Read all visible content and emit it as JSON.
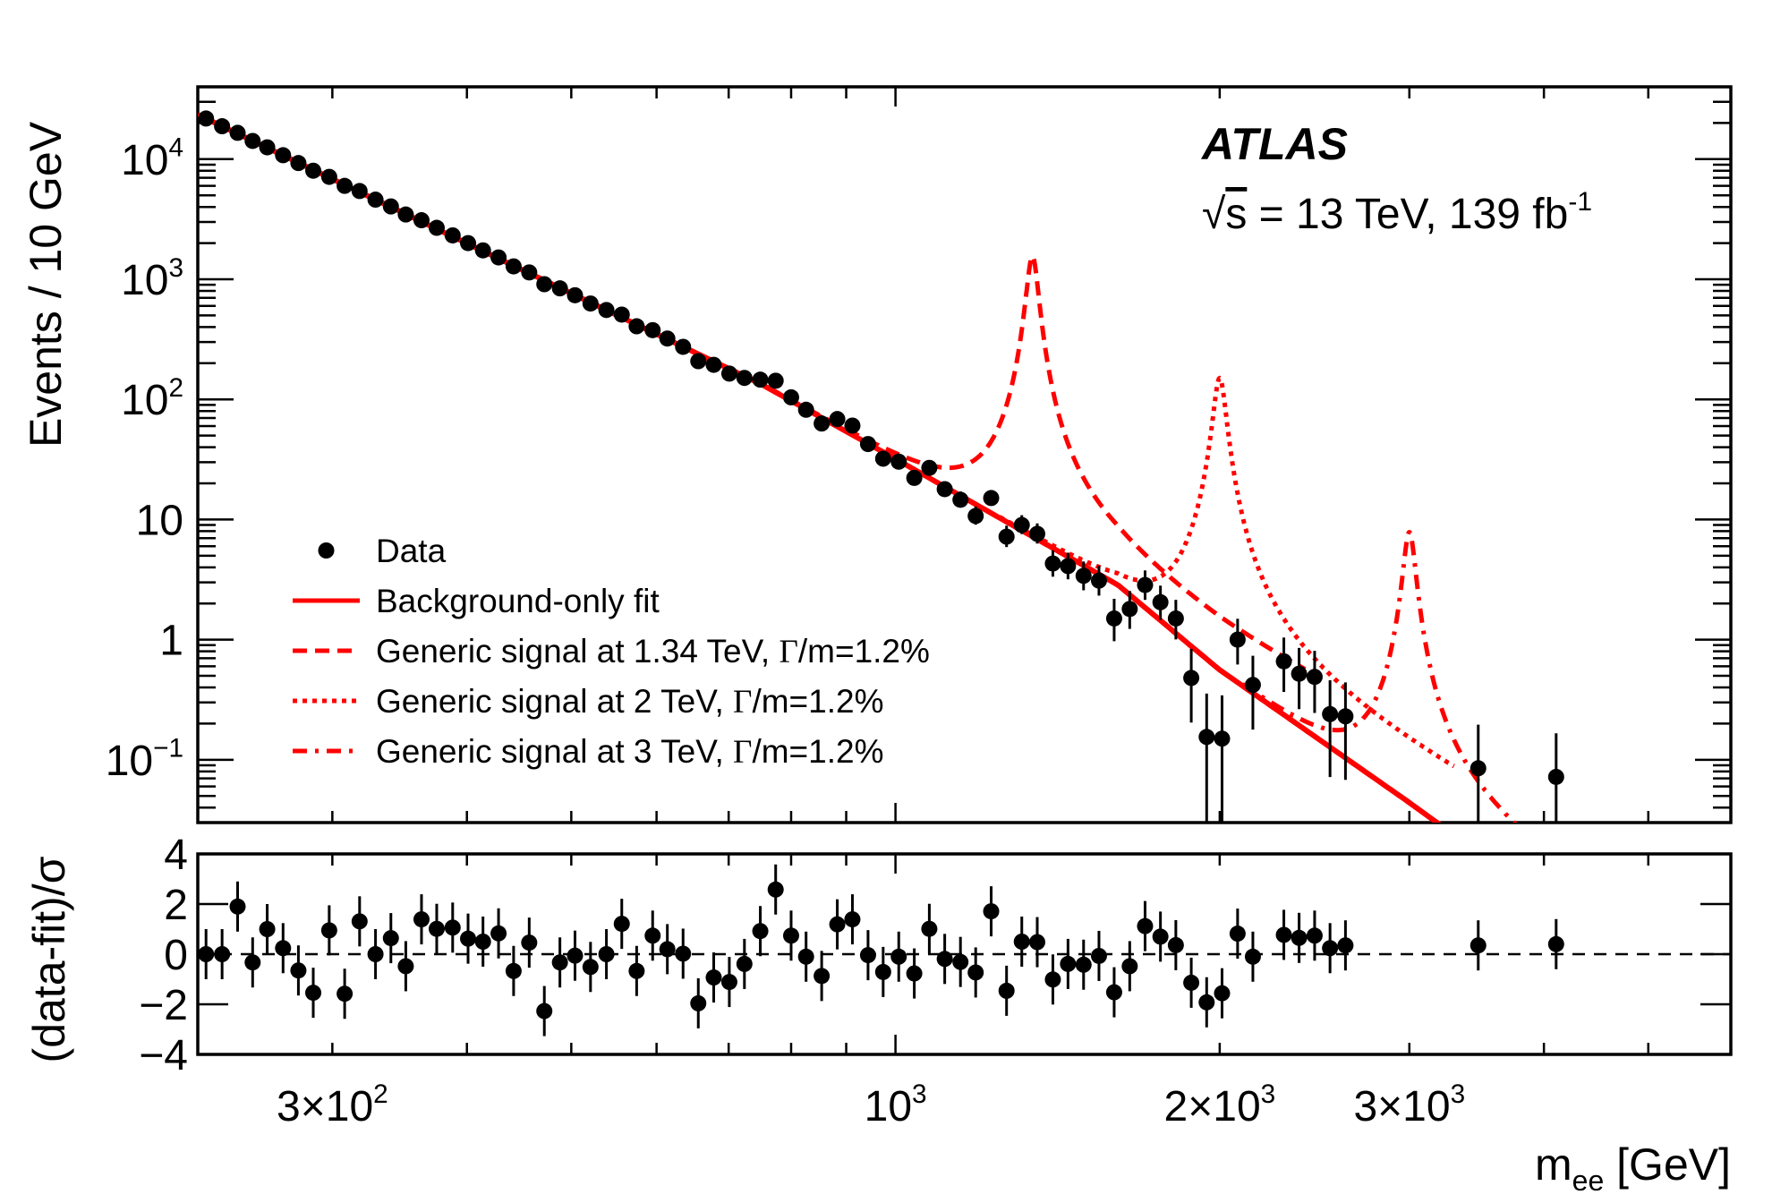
{
  "chart_data": {
    "type": "scatter",
    "title": "",
    "experiment_label": "ATLAS",
    "energy_label": {
      "prefix": "s",
      "text": " = 13 TeV, 139 fb",
      "superscript": "-1"
    },
    "xlabel": {
      "main": "m",
      "sub": "ee",
      "unit": " [GeV]"
    },
    "xscale": "log",
    "xlim": [
      225,
      5965
    ],
    "x_ticks": [
      {
        "value": 300,
        "label": "3×10",
        "exp": "2"
      },
      {
        "value": 1000,
        "label": "10",
        "exp": "3"
      },
      {
        "value": 2000,
        "label": "2×10",
        "exp": "3"
      },
      {
        "value": 3000,
        "label": "3×10",
        "exp": "3"
      }
    ],
    "main_panel": {
      "ylabel": "Events / 10 GeV",
      "yscale": "log",
      "ylim": [
        0.03,
        40000
      ],
      "y_ticks": [
        {
          "value": 10000,
          "label": "10",
          "exp": "4"
        },
        {
          "value": 1000,
          "label": "10",
          "exp": "3"
        },
        {
          "value": 100,
          "label": "10",
          "exp": "2"
        },
        {
          "value": 10,
          "label": "10",
          "exp": ""
        },
        {
          "value": 1,
          "label": "1",
          "exp": ""
        },
        {
          "value": 0.1,
          "label": "10",
          "exp": "−1"
        }
      ]
    },
    "ratio_panel": {
      "ylabel": "(data-fit)/σ",
      "ylim": [
        -4,
        4
      ],
      "y_ticks": [
        {
          "value": 4,
          "label": "4"
        },
        {
          "value": 2,
          "label": "2"
        },
        {
          "value": 0,
          "label": "0"
        },
        {
          "value": -2,
          "label": "−2"
        },
        {
          "value": -4,
          "label": "−4"
        }
      ],
      "reference_line": 0
    },
    "legend": {
      "position": "lower-left",
      "entries": [
        {
          "label": "Data",
          "style": "marker"
        },
        {
          "label": "Background-only fit",
          "style": "solid"
        },
        {
          "label_pre": "Generic signal at 1.34 TeV, ",
          "gamma": "Γ",
          "label_post": "/m=1.2%",
          "style": "dashed"
        },
        {
          "label_pre": "Generic signal at 2 TeV, ",
          "gamma": "Γ",
          "label_post": "/m=1.2%",
          "style": "dotted"
        },
        {
          "label_pre": "Generic signal at 3 TeV, ",
          "gamma": "Γ",
          "label_post": "/m=1.2%",
          "style": "dashdot"
        }
      ]
    },
    "colors": {
      "data": "#000000",
      "fit": "#ff0000",
      "signal": "#ff0000"
    },
    "background_fit": {
      "anchors": [
        [
          225,
          23500
        ],
        [
          749,
          135
        ],
        [
          1000,
          32
        ],
        [
          1609,
          2.85
        ],
        [
          2000,
          0.56
        ],
        [
          3000,
          0.044
        ],
        [
          3182,
          0.03
        ]
      ]
    },
    "signals": [
      {
        "name": "signal-1340",
        "mass": 1340,
        "peak_events": 1550,
        "core_width_gev": 16.8,
        "range": [
          760,
          2400
        ],
        "style": "dashed"
      },
      {
        "name": "signal-2000",
        "mass": 2000,
        "peak_events": 150,
        "core_width_gev": 27,
        "range": [
          1250,
          3300
        ],
        "style": "dotted"
      },
      {
        "name": "signal-3000",
        "mass": 3000,
        "peak_events": 7.8,
        "core_width_gev": 38,
        "range": [
          2100,
          4200
        ],
        "style": "dashdot"
      }
    ],
    "data_points": [
      {
        "m": 229,
        "events": 21790,
        "pull": 0.0
      },
      {
        "m": 237,
        "events": 18800,
        "pull": 0.0
      },
      {
        "m": 245,
        "events": 16550,
        "pull": 1.9
      },
      {
        "m": 253,
        "events": 14170,
        "pull": -0.33
      },
      {
        "m": 261,
        "events": 12540,
        "pull": 1.0
      },
      {
        "m": 270,
        "events": 10780,
        "pull": 0.24
      },
      {
        "m": 279,
        "events": 9280,
        "pull": -0.65
      },
      {
        "m": 288,
        "events": 8010,
        "pull": -1.54
      },
      {
        "m": 298,
        "events": 7120,
        "pull": 0.95
      },
      {
        "m": 308,
        "events": 5990,
        "pull": -1.58
      },
      {
        "m": 318,
        "events": 5430,
        "pull": 1.31
      },
      {
        "m": 329,
        "events": 4600,
        "pull": 0.0
      },
      {
        "m": 340,
        "events": 4040,
        "pull": 0.64
      },
      {
        "m": 351,
        "events": 3460,
        "pull": -0.48
      },
      {
        "m": 363,
        "events": 3100,
        "pull": 1.39
      },
      {
        "m": 375,
        "events": 2680,
        "pull": 1.01
      },
      {
        "m": 388,
        "events": 2320,
        "pull": 1.06
      },
      {
        "m": 401,
        "events": 2000,
        "pull": 0.62
      },
      {
        "m": 414,
        "events": 1740,
        "pull": 0.5
      },
      {
        "m": 428,
        "events": 1520,
        "pull": 0.83
      },
      {
        "m": 442,
        "events": 1280,
        "pull": -0.67
      },
      {
        "m": 457,
        "events": 1140,
        "pull": 0.46
      },
      {
        "m": 472,
        "events": 910,
        "pull": -2.27
      },
      {
        "m": 488,
        "events": 840,
        "pull": -0.33
      },
      {
        "m": 504,
        "events": 736,
        "pull": -0.06
      },
      {
        "m": 521,
        "events": 628,
        "pull": -0.51
      },
      {
        "m": 539,
        "events": 555,
        "pull": 0.0
      },
      {
        "m": 557,
        "events": 508,
        "pull": 1.21
      },
      {
        "m": 575,
        "events": 406,
        "pull": -0.67
      },
      {
        "m": 595,
        "events": 377,
        "pull": 0.74
      },
      {
        "m": 614,
        "events": 321,
        "pull": 0.2
      },
      {
        "m": 635,
        "events": 274,
        "pull": 0.02
      },
      {
        "m": 656,
        "events": 208,
        "pull": -1.96
      },
      {
        "m": 678,
        "events": 194,
        "pull": -0.93
      },
      {
        "m": 701,
        "events": 164,
        "pull": -1.11
      },
      {
        "m": 724,
        "events": 151,
        "pull": -0.39
      },
      {
        "m": 749,
        "events": 146,
        "pull": 0.92
      },
      {
        "m": 774,
        "events": 143,
        "pull": 2.58
      },
      {
        "m": 800,
        "events": 104,
        "pull": 0.74
      },
      {
        "m": 826,
        "events": 82,
        "pull": -0.1
      },
      {
        "m": 854,
        "events": 63,
        "pull": -0.87
      },
      {
        "m": 883,
        "events": 68.6,
        "pull": 1.19
      },
      {
        "m": 912,
        "events": 60.5,
        "pull": 1.39
      },
      {
        "m": 943,
        "events": 42.5,
        "pull": -0.04
      },
      {
        "m": 974,
        "events": 32.1,
        "pull": -0.71
      },
      {
        "m": 1007,
        "events": 30.3,
        "pull": -0.1
      },
      {
        "m": 1041,
        "events": 22.2,
        "pull": -0.77
      },
      {
        "m": 1075,
        "events": 26.9,
        "pull": 1.01
      },
      {
        "m": 1111,
        "events": 17.9,
        "pull": -0.19
      },
      {
        "m": 1149,
        "events": 14.6,
        "pull": -0.31
      },
      {
        "m": 1187,
        "events": 10.7,
        "pull": -0.73
      },
      {
        "m": 1227,
        "events": 15.1,
        "pull": 1.71
      },
      {
        "m": 1268,
        "events": 7.2,
        "pull": -1.46
      },
      {
        "m": 1310,
        "events": 9.0,
        "pull": 0.5
      },
      {
        "m": 1354,
        "events": 7.6,
        "pull": 0.48
      },
      {
        "m": 1400,
        "events": 4.3,
        "pull": -1.01
      },
      {
        "m": 1446,
        "events": 4.1,
        "pull": -0.39
      },
      {
        "m": 1495,
        "events": 3.4,
        "pull": -0.42
      },
      {
        "m": 1545,
        "events": 3.1,
        "pull": -0.07
      },
      {
        "m": 1596,
        "events": 1.5,
        "pull": -1.52
      },
      {
        "m": 1650,
        "events": 1.8,
        "pull": -0.48
      },
      {
        "m": 1705,
        "events": 2.85,
        "pull": 1.12
      },
      {
        "m": 1762,
        "events": 2.05,
        "pull": 0.7
      },
      {
        "m": 1821,
        "events": 1.5,
        "pull": 0.36
      },
      {
        "m": 1882,
        "events": 0.48,
        "pull": -1.14
      },
      {
        "m": 1945,
        "events": 0.155,
        "pull": -1.92
      },
      {
        "m": 2010,
        "events": 0.15,
        "pull": -1.56
      },
      {
        "m": 2078,
        "events": 1.0,
        "pull": 0.82
      },
      {
        "m": 2147,
        "events": 0.42,
        "pull": -0.1
      },
      {
        "m": 2294,
        "events": 0.66,
        "pull": 0.77
      },
      {
        "m": 2370,
        "events": 0.52,
        "pull": 0.65
      },
      {
        "m": 2450,
        "events": 0.49,
        "pull": 0.74
      },
      {
        "m": 2532,
        "events": 0.24,
        "pull": 0.24
      },
      {
        "m": 2617,
        "events": 0.23,
        "pull": 0.35
      },
      {
        "m": 3476,
        "events": 0.085,
        "pull": 0.35
      },
      {
        "m": 4106,
        "events": 0.072,
        "pull": 0.4
      }
    ]
  }
}
